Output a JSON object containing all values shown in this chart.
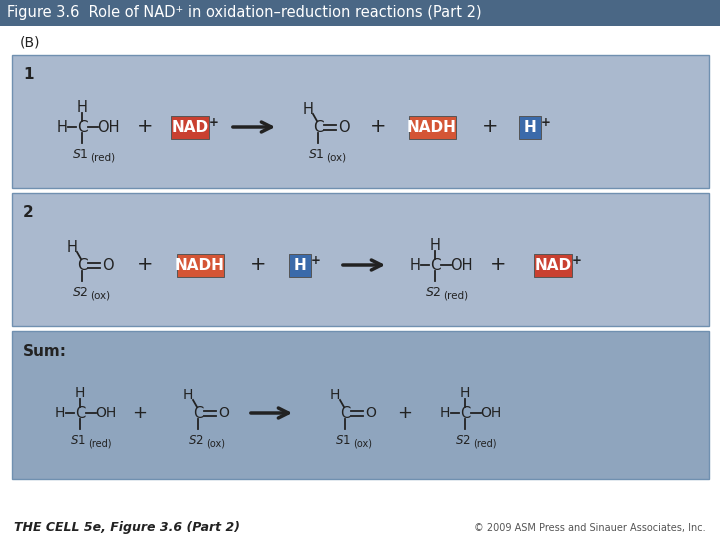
{
  "title": "Figure 3.6  Role of NAD⁺ in oxidation–reduction reactions (Part 2)",
  "title_bg": "#4a6785",
  "title_color": "#ffffff",
  "bg_color": "#ffffff",
  "panel_bg": "#aab9ce",
  "sum_panel_bg": "#8fa5be",
  "panel_border": "#7090b0",
  "nad_box_color": "#c94030",
  "nadh_box_color": "#d45535",
  "h_box_color": "#3a6aaa",
  "box_text_color": "#ffffff",
  "text_color": "#222222",
  "label_B": "(B)",
  "footer_left": "THE CELL 5e, Figure 3.6 (Part 2)",
  "footer_right": "© 2009 ASM Press and Sinauer Associates, Inc."
}
